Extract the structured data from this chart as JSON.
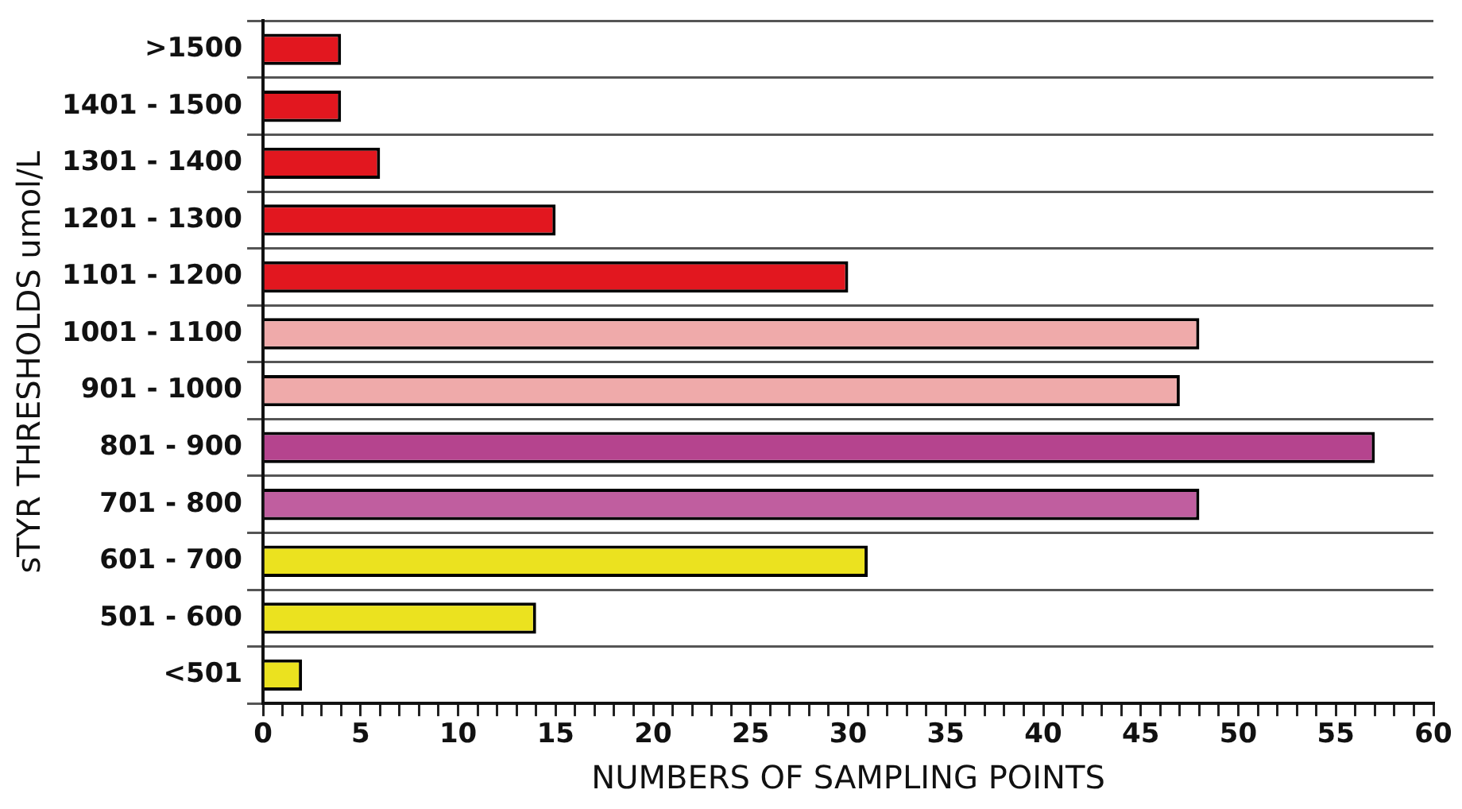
{
  "chart_data": {
    "type": "bar",
    "orientation": "horizontal",
    "xlabel": "NUMBERS OF SAMPLING POINTS",
    "ylabel": "sTYR THRESHOLDS umol/L",
    "categories": [
      ">1500",
      "1401 - 1500",
      "1301 - 1400",
      "1201 - 1300",
      "1101 - 1200",
      "1001 - 1100",
      "901 - 1000",
      "801 - 900",
      "701 - 800",
      "601 - 700",
      "501 - 600",
      "<501"
    ],
    "values": [
      4,
      4,
      6,
      15,
      30,
      48,
      47,
      57,
      48,
      31,
      14,
      2
    ],
    "colors": [
      "#e2171f",
      "#e2171f",
      "#e2171f",
      "#e2171f",
      "#e2171f",
      "#efaaaa",
      "#efaaaa",
      "#b5448e",
      "#c05e9f",
      "#ebe21f",
      "#ebe21f",
      "#ebe21f"
    ],
    "xlim": [
      0,
      60
    ],
    "xticks": [
      0,
      {
        "value": 1,
        "label": null
      },
      {
        "value": 2,
        "label": null
      },
      {
        "value": 3,
        "label": null
      },
      {
        "value": 4,
        "label": null
      },
      5,
      {
        "value": 6,
        "label": null
      },
      {
        "value": 7,
        "label": null
      },
      {
        "value": 8,
        "label": null
      },
      {
        "value": 9,
        "label": null
      },
      10,
      {
        "value": 11,
        "label": null
      },
      {
        "value": 12,
        "label": null
      },
      {
        "value": 13,
        "label": null
      },
      {
        "value": 14,
        "label": null
      },
      15,
      {
        "value": 16,
        "label": null
      },
      {
        "value": 17,
        "label": null
      },
      {
        "value": 18,
        "label": null
      },
      {
        "value": 19,
        "label": null
      },
      20,
      {
        "value": 21,
        "label": null
      },
      {
        "value": 22,
        "label": null
      },
      {
        "value": 23,
        "label": null
      },
      {
        "value": 24,
        "label": null
      },
      25,
      {
        "value": 26,
        "label": null
      },
      {
        "value": 27,
        "label": null
      },
      {
        "value": 28,
        "label": null
      },
      {
        "value": 29,
        "label": null
      },
      30,
      {
        "value": 31,
        "label": null
      },
      {
        "value": 32,
        "label": null
      },
      {
        "value": 33,
        "label": null
      },
      {
        "value": 34,
        "label": null
      },
      35,
      {
        "value": 36,
        "label": null
      },
      {
        "value": 37,
        "label": null
      },
      {
        "value": 38,
        "label": null
      },
      {
        "value": 39,
        "label": null
      },
      40,
      {
        "value": 41,
        "label": null
      },
      {
        "value": 42,
        "label": null
      },
      {
        "value": 43,
        "label": null
      },
      {
        "value": 44,
        "label": null
      },
      45,
      {
        "value": 46,
        "label": null
      },
      {
        "value": 47,
        "label": null
      },
      {
        "value": 48,
        "label": null
      },
      {
        "value": 49,
        "label": null
      },
      50,
      {
        "value": 51,
        "label": null
      },
      {
        "value": 52,
        "label": null
      },
      {
        "value": 53,
        "label": null
      },
      {
        "value": 54,
        "label": null
      },
      55,
      {
        "value": 56,
        "label": null
      },
      {
        "value": 57,
        "label": null
      },
      {
        "value": 58,
        "label": null
      },
      {
        "value": 59,
        "label": null
      },
      60
    ],
    "grid": "y",
    "legend": false
  }
}
